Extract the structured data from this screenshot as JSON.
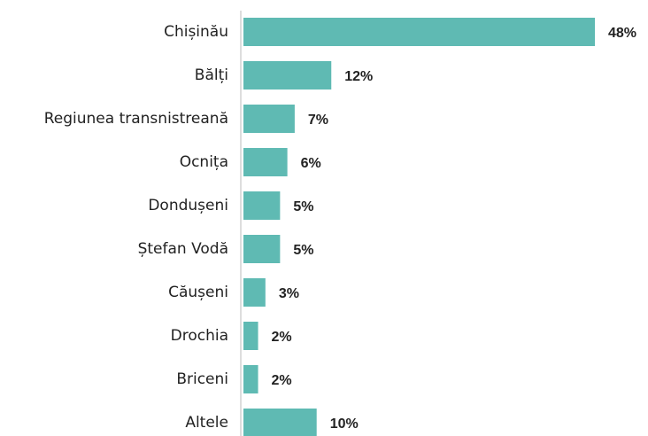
{
  "chart_data": {
    "type": "barh",
    "categories": [
      "Chișinău",
      "Bălți",
      "Regiunea transnistreană",
      "Ocnița",
      "Dondușeni",
      "Ștefan Vodă",
      "Căușeni",
      "Drochia",
      "Briceni",
      "Altele"
    ],
    "values": [
      48,
      12,
      7,
      6,
      5,
      5,
      3,
      2,
      2,
      10
    ],
    "value_labels": [
      "48%",
      "12%",
      "7%",
      "6%",
      "5%",
      "5%",
      "3%",
      "2%",
      "2%",
      "10%"
    ],
    "color": "#5fbab3"
  }
}
